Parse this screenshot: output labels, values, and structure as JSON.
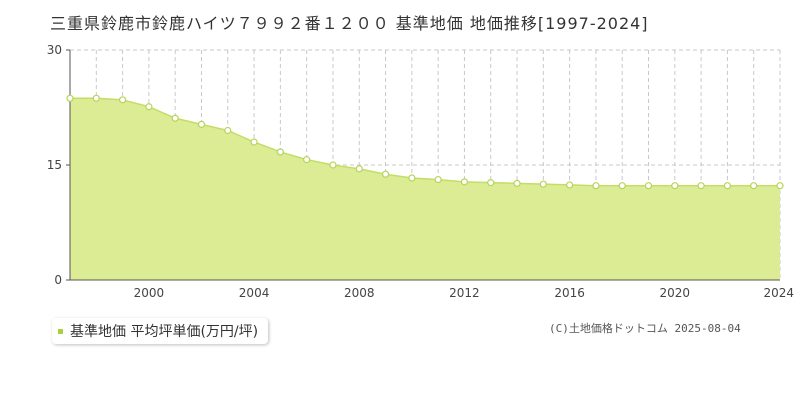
{
  "title": "三重県鈴鹿市鈴鹿ハイツ７９９２番１２００ 基準地価 地価推移[1997-2024]",
  "legend": {
    "label": "基準地価 平均坪単価(万円/坪)"
  },
  "copyright": "(C)土地価格ドットコム 2025-08-04",
  "colors": {
    "fill": "#dcec94",
    "line": "#c2de66",
    "marker_fill": "#ffffff",
    "marker_stroke": "#b5d45a",
    "grid": "#c8c8c8",
    "legend_swatch": "#a5d13f"
  },
  "chart_data": {
    "type": "area",
    "x": [
      1997,
      1998,
      1999,
      2000,
      2001,
      2002,
      2003,
      2004,
      2005,
      2006,
      2007,
      2008,
      2009,
      2010,
      2011,
      2012,
      2013,
      2014,
      2015,
      2016,
      2017,
      2018,
      2019,
      2020,
      2021,
      2022,
      2023,
      2024
    ],
    "series": [
      {
        "values": [
          23.7,
          23.7,
          23.5,
          22.6,
          21.1,
          20.3,
          19.5,
          18.0,
          16.7,
          15.7,
          15.0,
          14.5,
          13.8,
          13.3,
          13.1,
          12.8,
          12.7,
          12.6,
          12.5,
          12.4,
          12.3,
          12.3,
          12.3,
          12.3,
          12.3,
          12.3,
          12.3,
          12.3
        ]
      }
    ],
    "xlim": [
      1997,
      2024
    ],
    "ylim": [
      0,
      30
    ],
    "y_ticks": [
      "0",
      "15",
      "30"
    ],
    "x_ticks": [
      "2000",
      "2004",
      "2008",
      "2012",
      "2016",
      "2020",
      "2024"
    ],
    "grid": "vertical dashed every year, horizontal dashed at 15",
    "legend_position": "bottom-left"
  }
}
